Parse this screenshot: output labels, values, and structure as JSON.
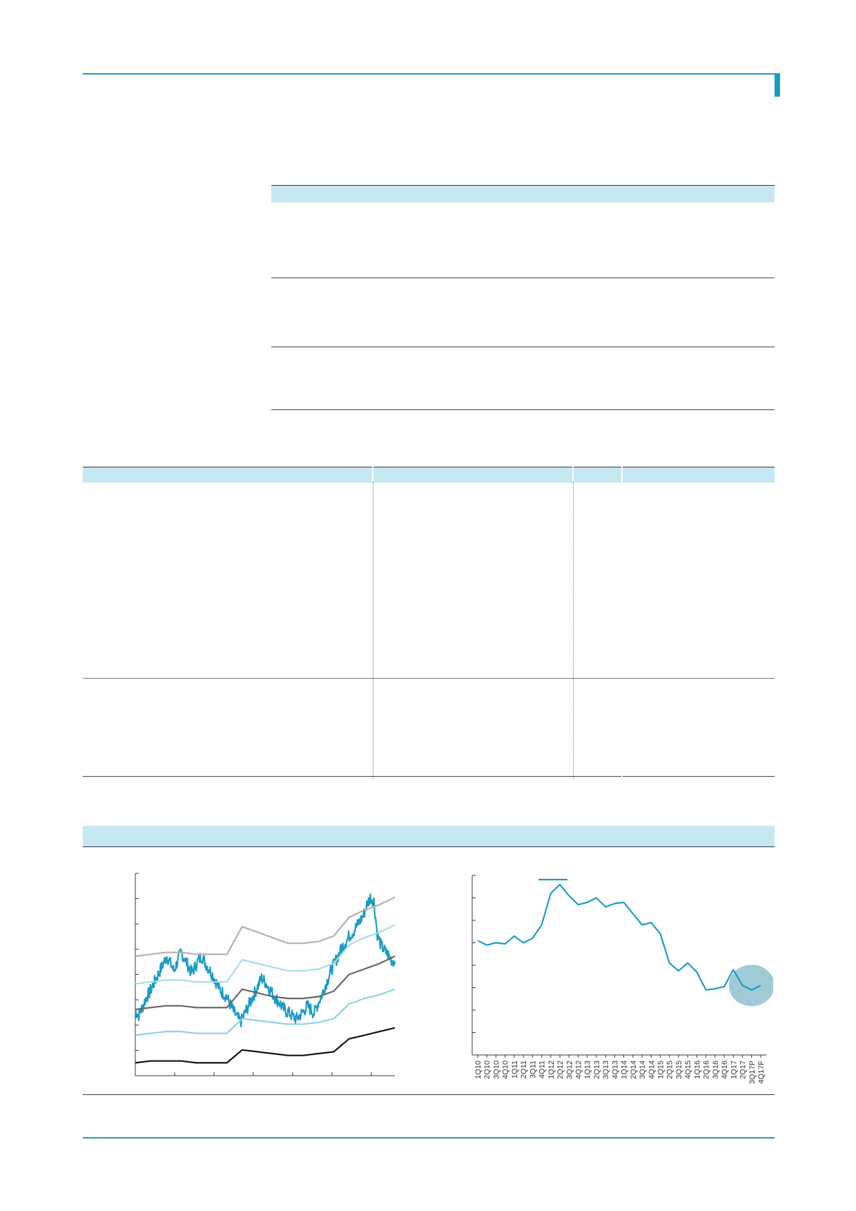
{
  "colors": {
    "accent": "#1a9cc4",
    "header_fill": "#c5e8f2",
    "band_upper_outer": "#b0b0b0",
    "band_upper_inner": "#a8dceb",
    "band_mid": "#666666",
    "band_lower_inner": "#8fd0e3",
    "band_lower_outer": "#111111",
    "highlight": "#7fb8c8"
  },
  "chart_data": [
    {
      "type": "line",
      "note_series": [
        {
          "role": "price",
          "color": "#1a9cc4",
          "values": [
            0.2,
            0.18,
            0.22,
            0.27,
            0.3,
            0.34,
            0.38,
            0.42,
            0.46,
            0.5,
            0.46,
            0.42,
            0.47,
            0.52,
            0.49,
            0.45,
            0.41,
            0.44,
            0.48,
            0.5,
            0.46,
            0.43,
            0.4,
            0.36,
            0.32,
            0.3,
            0.28,
            0.24,
            0.2,
            0.17,
            0.14,
            0.18,
            0.22,
            0.26,
            0.3,
            0.34,
            0.38,
            0.36,
            0.33,
            0.3,
            0.27,
            0.25,
            0.22,
            0.2,
            0.19,
            0.17,
            0.16,
            0.18,
            0.2,
            0.23,
            0.21,
            0.19,
            0.24,
            0.28,
            0.33,
            0.38,
            0.43,
            0.47,
            0.51,
            0.55,
            0.58,
            0.61,
            0.63,
            0.66,
            0.69,
            0.72,
            0.78,
            0.82,
            0.8,
            0.62,
            0.56,
            0.53,
            0.51,
            0.48,
            0.47
          ]
        },
        {
          "role": "band-upper-outer",
          "color": "#b0b0b0",
          "values": [
            0.5,
            0.51,
            0.52,
            0.52,
            0.51,
            0.51,
            0.51,
            0.66,
            0.63,
            0.6,
            0.57,
            0.57,
            0.58,
            0.61,
            0.71,
            0.75,
            0.78,
            0.82
          ]
        },
        {
          "role": "band-upper-inner",
          "color": "#a8dceb",
          "values": [
            0.35,
            0.36,
            0.37,
            0.37,
            0.36,
            0.36,
            0.36,
            0.48,
            0.46,
            0.44,
            0.42,
            0.42,
            0.43,
            0.46,
            0.56,
            0.6,
            0.63,
            0.67
          ]
        },
        {
          "role": "band-mid",
          "color": "#666666",
          "values": [
            0.21,
            0.22,
            0.23,
            0.23,
            0.22,
            0.22,
            0.22,
            0.32,
            0.3,
            0.28,
            0.27,
            0.27,
            0.28,
            0.31,
            0.4,
            0.43,
            0.46,
            0.5
          ]
        },
        {
          "role": "band-lower-inner",
          "color": "#8fd0e3",
          "values": [
            0.07,
            0.08,
            0.09,
            0.09,
            0.08,
            0.08,
            0.08,
            0.16,
            0.15,
            0.14,
            0.13,
            0.13,
            0.14,
            0.16,
            0.24,
            0.27,
            0.29,
            0.32
          ]
        },
        {
          "role": "band-lower-outer",
          "color": "#111111",
          "values": [
            -0.08,
            -0.07,
            -0.07,
            -0.07,
            -0.08,
            -0.08,
            -0.08,
            -0.01,
            -0.02,
            -0.03,
            -0.04,
            -0.04,
            -0.03,
            -0.02,
            0.05,
            0.07,
            0.09,
            0.11
          ]
        }
      ],
      "ylim": [
        -0.15,
        0.95
      ]
    },
    {
      "type": "line",
      "categories": [
        "1Q10",
        "2Q10",
        "3Q10",
        "4Q10",
        "1Q11",
        "2Q11",
        "3Q11",
        "4Q11",
        "1Q12",
        "2Q12",
        "3Q12",
        "4Q12",
        "1Q13",
        "2Q13",
        "3Q13",
        "4Q13",
        "1Q14",
        "2Q14",
        "3Q14",
        "4Q14",
        "1Q15",
        "2Q15",
        "3Q15",
        "4Q15",
        "1Q16",
        "2Q16",
        "3Q16",
        "4Q16",
        "1Q17",
        "2Q17",
        "3Q17P",
        "4Q17F"
      ],
      "series": [
        {
          "values": [
            5.1,
            4.9,
            5.0,
            4.95,
            5.3,
            5.0,
            5.2,
            5.8,
            7.2,
            7.6,
            7.1,
            6.7,
            6.8,
            7.0,
            6.6,
            6.75,
            6.8,
            6.3,
            5.8,
            5.9,
            5.4,
            4.1,
            3.75,
            4.1,
            3.7,
            2.9,
            2.95,
            3.05,
            3.8,
            3.1,
            2.9,
            3.1
          ]
        }
      ],
      "ylim": [
        0,
        8
      ],
      "highlight_categories": [
        "2Q17",
        "3Q17P",
        "4Q17F"
      ]
    }
  ]
}
